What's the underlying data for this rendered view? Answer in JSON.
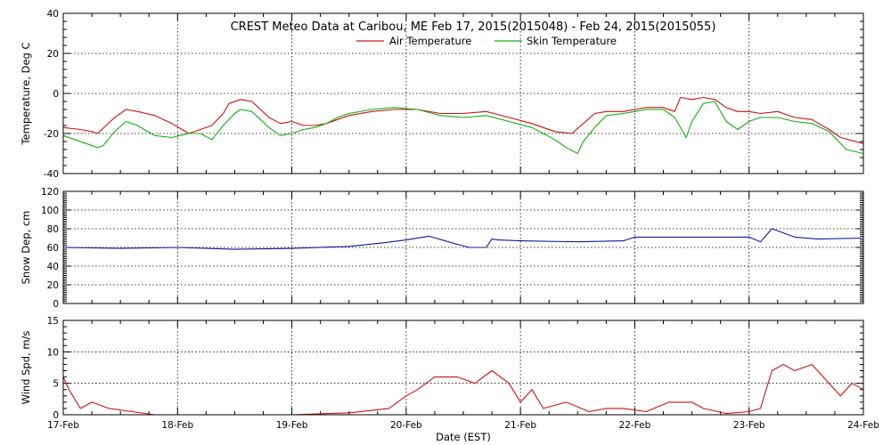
{
  "chart_data": [
    {
      "type": "line",
      "title": "CREST Meteo Data at Caribou, ME    Feb 17, 2015(2015048) - Feb 24, 2015(2015055)",
      "ylabel": "Temperature, Deg C",
      "ylim": [
        -40,
        40
      ],
      "yticks": [
        -40,
        -20,
        0,
        20,
        40
      ],
      "xlim": [
        0,
        7
      ],
      "legend": "top-center",
      "grid": true,
      "series": [
        {
          "name": "Air Temperature",
          "color": "#d01010",
          "x": [
            0,
            0.15,
            0.25,
            0.3,
            0.45,
            0.55,
            0.65,
            0.8,
            0.95,
            1.1,
            1.2,
            1.3,
            1.4,
            1.45,
            1.55,
            1.65,
            1.8,
            1.9,
            2.0,
            2.1,
            2.2,
            2.3,
            2.4,
            2.5,
            2.7,
            2.9,
            3.1,
            3.3,
            3.5,
            3.7,
            3.9,
            4.1,
            4.3,
            4.45,
            4.55,
            4.65,
            4.75,
            4.9,
            5.0,
            5.1,
            5.25,
            5.35,
            5.4,
            5.5,
            5.6,
            5.7,
            5.8,
            5.9,
            6.0,
            6.1,
            6.25,
            6.4,
            6.55,
            6.7,
            6.8,
            7.0
          ],
          "y": [
            -17,
            -18,
            -19,
            -20,
            -12,
            -8,
            -9,
            -11,
            -15,
            -20,
            -18,
            -16,
            -10,
            -5,
            -3,
            -4,
            -12,
            -15,
            -14,
            -16,
            -16,
            -15,
            -13,
            -11,
            -9,
            -8,
            -8,
            -10,
            -10,
            -9,
            -12,
            -15,
            -19,
            -20,
            -15,
            -10,
            -9,
            -9,
            -8,
            -7,
            -7,
            -9,
            -2,
            -3,
            -2,
            -3,
            -7,
            -9,
            -9,
            -10,
            -9,
            -12,
            -13,
            -18,
            -22,
            -25
          ]
        },
        {
          "name": "Skin Temperature",
          "color": "#10b010",
          "x": [
            0,
            0.2,
            0.3,
            0.35,
            0.45,
            0.55,
            0.65,
            0.8,
            0.95,
            1.1,
            1.2,
            1.3,
            1.4,
            1.5,
            1.55,
            1.65,
            1.8,
            1.9,
            2.0,
            2.1,
            2.2,
            2.3,
            2.4,
            2.5,
            2.7,
            2.9,
            3.1,
            3.3,
            3.5,
            3.7,
            3.9,
            4.1,
            4.2,
            4.3,
            4.4,
            4.5,
            4.55,
            4.65,
            4.75,
            4.9,
            5.0,
            5.1,
            5.25,
            5.35,
            5.45,
            5.5,
            5.6,
            5.7,
            5.8,
            5.9,
            6.0,
            6.1,
            6.25,
            6.4,
            6.55,
            6.7,
            6.85,
            7.0
          ],
          "y": [
            -21,
            -25,
            -27,
            -26,
            -19,
            -14,
            -16,
            -21,
            -22,
            -20,
            -20,
            -23,
            -16,
            -10,
            -8,
            -9,
            -17,
            -21,
            -20,
            -18,
            -17,
            -15,
            -12,
            -10,
            -8,
            -7,
            -8,
            -11,
            -12,
            -11,
            -14,
            -17,
            -20,
            -23,
            -27,
            -30,
            -24,
            -17,
            -11,
            -10,
            -9,
            -8,
            -8,
            -12,
            -22,
            -14,
            -5,
            -4,
            -14,
            -18,
            -14,
            -12,
            -12,
            -14,
            -15,
            -19,
            -28,
            -30
          ]
        }
      ]
    },
    {
      "type": "line",
      "ylabel": "Snow Dep, cm",
      "ylim": [
        0,
        120
      ],
      "yticks": [
        0,
        20,
        40,
        60,
        80,
        100,
        120
      ],
      "xlim": [
        0,
        7
      ],
      "grid": true,
      "series": [
        {
          "color": "#0a1a9e",
          "x": [
            0,
            0.5,
            1.0,
            1.5,
            2.0,
            2.5,
            2.8,
            3.0,
            3.2,
            3.4,
            3.55,
            3.7,
            3.75,
            3.8,
            4.0,
            4.5,
            4.9,
            5.0,
            5.5,
            5.9,
            6.0,
            6.1,
            6.2,
            6.4,
            6.6,
            7.0
          ],
          "y": [
            60,
            59,
            60,
            58,
            59,
            61,
            65,
            68,
            72,
            65,
            60,
            60,
            69,
            68,
            67,
            66,
            67,
            71,
            71,
            71,
            71,
            66,
            80,
            71,
            69,
            70
          ]
        }
      ]
    },
    {
      "type": "line",
      "ylabel": "Wind Spd, m/s",
      "xlabel": "Date (EST)",
      "ylim": [
        0,
        15
      ],
      "yticks": [
        0,
        5,
        10,
        15
      ],
      "xlim": [
        0,
        7
      ],
      "xticks": [
        "17-Feb",
        "18-Feb",
        "19-Feb",
        "20-Feb",
        "21-Feb",
        "22-Feb",
        "23-Feb",
        "24-Feb"
      ],
      "grid": true,
      "series": [
        {
          "color": "#d01010",
          "x": [
            0,
            0.05,
            0.15,
            0.25,
            0.4,
            0.6,
            0.8,
            1.0,
            1.5,
            2.0,
            2.5,
            2.85,
            3.0,
            3.1,
            3.25,
            3.45,
            3.6,
            3.75,
            3.9,
            4.0,
            4.1,
            4.2,
            4.4,
            4.6,
            4.75,
            4.9,
            5.1,
            5.3,
            5.5,
            5.6,
            5.8,
            6.0,
            6.1,
            6.2,
            6.3,
            6.4,
            6.55,
            6.7,
            6.8,
            6.9,
            7.0
          ],
          "y": [
            6,
            4,
            1,
            2,
            1,
            0.5,
            0,
            0,
            0,
            0,
            0.3,
            1,
            3,
            4,
            6,
            6,
            5,
            7,
            5,
            2,
            4,
            1,
            2,
            0.5,
            1,
            1,
            0.5,
            2,
            2,
            1,
            0.2,
            0.5,
            1,
            7,
            8,
            7,
            8,
            5,
            3,
            5,
            4
          ]
        }
      ]
    }
  ]
}
